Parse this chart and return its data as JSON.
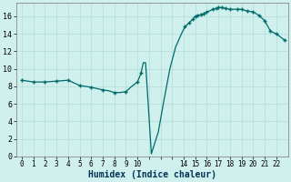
{
  "xlabel": "Humidex (Indice chaleur)",
  "background_color": "#cff0ec",
  "line_color": "#006b6b",
  "marker_color": "#006b6b",
  "grid_color": "#b8e0da",
  "xlim": [
    -0.5,
    23.0
  ],
  "ylim": [
    0,
    17.5
  ],
  "xtick_labels": [
    "0",
    "1",
    "2",
    "3",
    "4",
    "5",
    "6",
    "7",
    "8",
    "9",
    "10",
    "",
    "",
    "",
    "14",
    "15",
    "16",
    "17",
    "18",
    "19",
    "20",
    "21",
    "22"
  ],
  "xtick_pos": [
    0,
    1,
    2,
    3,
    4,
    5,
    6,
    7,
    8,
    9,
    10,
    11,
    12,
    13,
    14,
    15,
    16,
    17,
    18,
    19,
    20,
    21,
    22
  ],
  "yticks": [
    0,
    2,
    4,
    6,
    8,
    10,
    12,
    14,
    16
  ],
  "x": [
    0,
    1,
    2,
    3,
    4,
    5,
    6,
    7,
    7.5,
    8,
    8.5,
    9,
    9.5,
    10,
    10.3,
    10.5,
    10.7,
    11.2,
    11.8,
    12.3,
    12.8,
    13.3,
    13.8,
    14.1,
    14.5,
    14.8,
    15.0,
    15.2,
    15.5,
    15.7,
    16.0,
    16.2,
    16.5,
    16.8,
    17.0,
    17.3,
    17.6,
    18.0,
    18.3,
    18.6,
    19.0,
    19.5,
    20.0,
    20.5,
    21.0,
    21.5,
    22.0,
    22.7
  ],
  "y": [
    8.7,
    8.5,
    8.5,
    8.6,
    8.7,
    8.1,
    7.9,
    7.6,
    7.5,
    7.3,
    7.3,
    7.4,
    8.0,
    8.5,
    9.5,
    10.7,
    10.7,
    0.3,
    2.8,
    6.5,
    10.0,
    12.5,
    14.0,
    14.8,
    15.3,
    15.7,
    16.0,
    16.1,
    16.2,
    16.3,
    16.5,
    16.6,
    16.8,
    16.9,
    17.0,
    17.0,
    16.9,
    16.8,
    16.8,
    16.8,
    16.8,
    16.6,
    16.5,
    16.1,
    15.5,
    14.3,
    14.0,
    13.3
  ],
  "marker_x": [
    0,
    1,
    2,
    3,
    4,
    5,
    6,
    7,
    8,
    9,
    10,
    10.3,
    14.1,
    14.5,
    14.8,
    15.0,
    15.2,
    15.5,
    15.7,
    16.0,
    16.5,
    16.8,
    17.0,
    17.3,
    17.6,
    18.0,
    18.6,
    19.0,
    19.5,
    20.0,
    20.5,
    21.0,
    21.5,
    22.0,
    22.7
  ],
  "marker_y": [
    8.7,
    8.5,
    8.5,
    8.6,
    8.7,
    8.1,
    7.9,
    7.6,
    7.3,
    7.4,
    8.5,
    9.5,
    14.8,
    15.3,
    15.7,
    16.0,
    16.1,
    16.2,
    16.3,
    16.5,
    16.8,
    16.9,
    17.0,
    17.0,
    16.9,
    16.8,
    16.8,
    16.8,
    16.6,
    16.5,
    16.1,
    15.5,
    14.3,
    14.0,
    13.3
  ]
}
